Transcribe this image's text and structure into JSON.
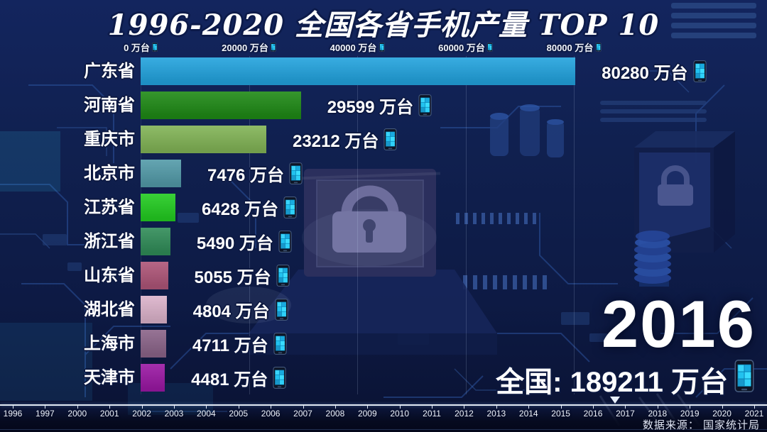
{
  "title": "1996-2020 全国各省手机产量 TOP 10",
  "chart_data": {
    "type": "bar",
    "orientation": "horizontal",
    "title": "1996-2020 全国各省手机产量 TOP 10",
    "unit": "万台",
    "current_year": "2016",
    "categories": [
      "广东省",
      "河南省",
      "重庆市",
      "北京市",
      "江苏省",
      "浙江省",
      "山东省",
      "湖北省",
      "上海市",
      "天津市"
    ],
    "values": [
      80280,
      29599,
      23212,
      7476,
      6428,
      5490,
      5055,
      4804,
      4711,
      4481
    ],
    "bar_colors": [
      "#22A3DE",
      "#1F8A16",
      "#82B456",
      "#539BA9",
      "#23CC21",
      "#308C58",
      "#AE5578",
      "#DCB3CB",
      "#8B6489",
      "#9B18A4"
    ],
    "xlim": [
      0,
      80000
    ],
    "x_ticks": [
      0,
      20000,
      40000,
      60000,
      80000
    ],
    "x_tick_labels": [
      "0 万台",
      "20000 万台",
      "40000 万台",
      "60000 万台",
      "80000 万台"
    ],
    "grid": "vertical-faint",
    "legend": "none",
    "national_total": 189211,
    "total_label": "全国: 189211 万台"
  },
  "year_display": "2016",
  "timeline": {
    "years": [
      "1996",
      "1997",
      "2000",
      "2001",
      "2002",
      "2003",
      "2004",
      "2005",
      "2006",
      "2007",
      "2008",
      "2009",
      "2010",
      "2011",
      "2012",
      "2013",
      "2014",
      "2015",
      "2016",
      "2017",
      "2018",
      "2019",
      "2020",
      "2021"
    ],
    "marker_year": "2017"
  },
  "source": "数据来源： 国家统计局",
  "colors": {
    "background": "#0e1c4c",
    "title_text": "#ffffff",
    "label_text": "#ffffff",
    "outline": "#0c1840",
    "phone_screen_cyan": "#35D2F8",
    "phone_body": "#0d1526",
    "timeline_line": "#edf3fc"
  },
  "icons": {
    "phone": "phone-icon"
  }
}
